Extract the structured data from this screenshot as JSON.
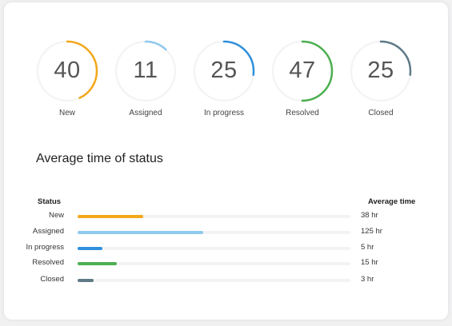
{
  "status_cards": [
    {
      "count": "40",
      "label": "New",
      "color": "#f3a81b",
      "fraction": 0.43
    },
    {
      "count": "11",
      "label": "Assigned",
      "color": "#90c9ee",
      "fraction": 0.12
    },
    {
      "count": "25",
      "label": "In progress",
      "color": "#2f90dc",
      "fraction": 0.27
    },
    {
      "count": "47",
      "label": "Resolved",
      "color": "#4caf50",
      "fraction": 0.5
    },
    {
      "count": "25",
      "label": "Closed",
      "color": "#5e7a86",
      "fraction": 0.27
    }
  ],
  "avg_section": {
    "title": "Average time of status",
    "header_status": "Status",
    "header_avg": "Average time",
    "rows": [
      {
        "status": "New",
        "time": "38 hr",
        "color": "#f3a81b",
        "fraction": 0.24
      },
      {
        "status": "Assigned",
        "time": "125 hr",
        "color": "#90c9ee",
        "fraction": 0.46
      },
      {
        "status": "In progress",
        "time": "5 hr",
        "color": "#2f90dc",
        "fraction": 0.09
      },
      {
        "status": "Resolved",
        "time": "15 hr",
        "color": "#4caf50",
        "fraction": 0.145
      },
      {
        "status": "Closed",
        "time": "3 hr",
        "color": "#5e7a86",
        "fraction": 0.06
      }
    ]
  }
}
